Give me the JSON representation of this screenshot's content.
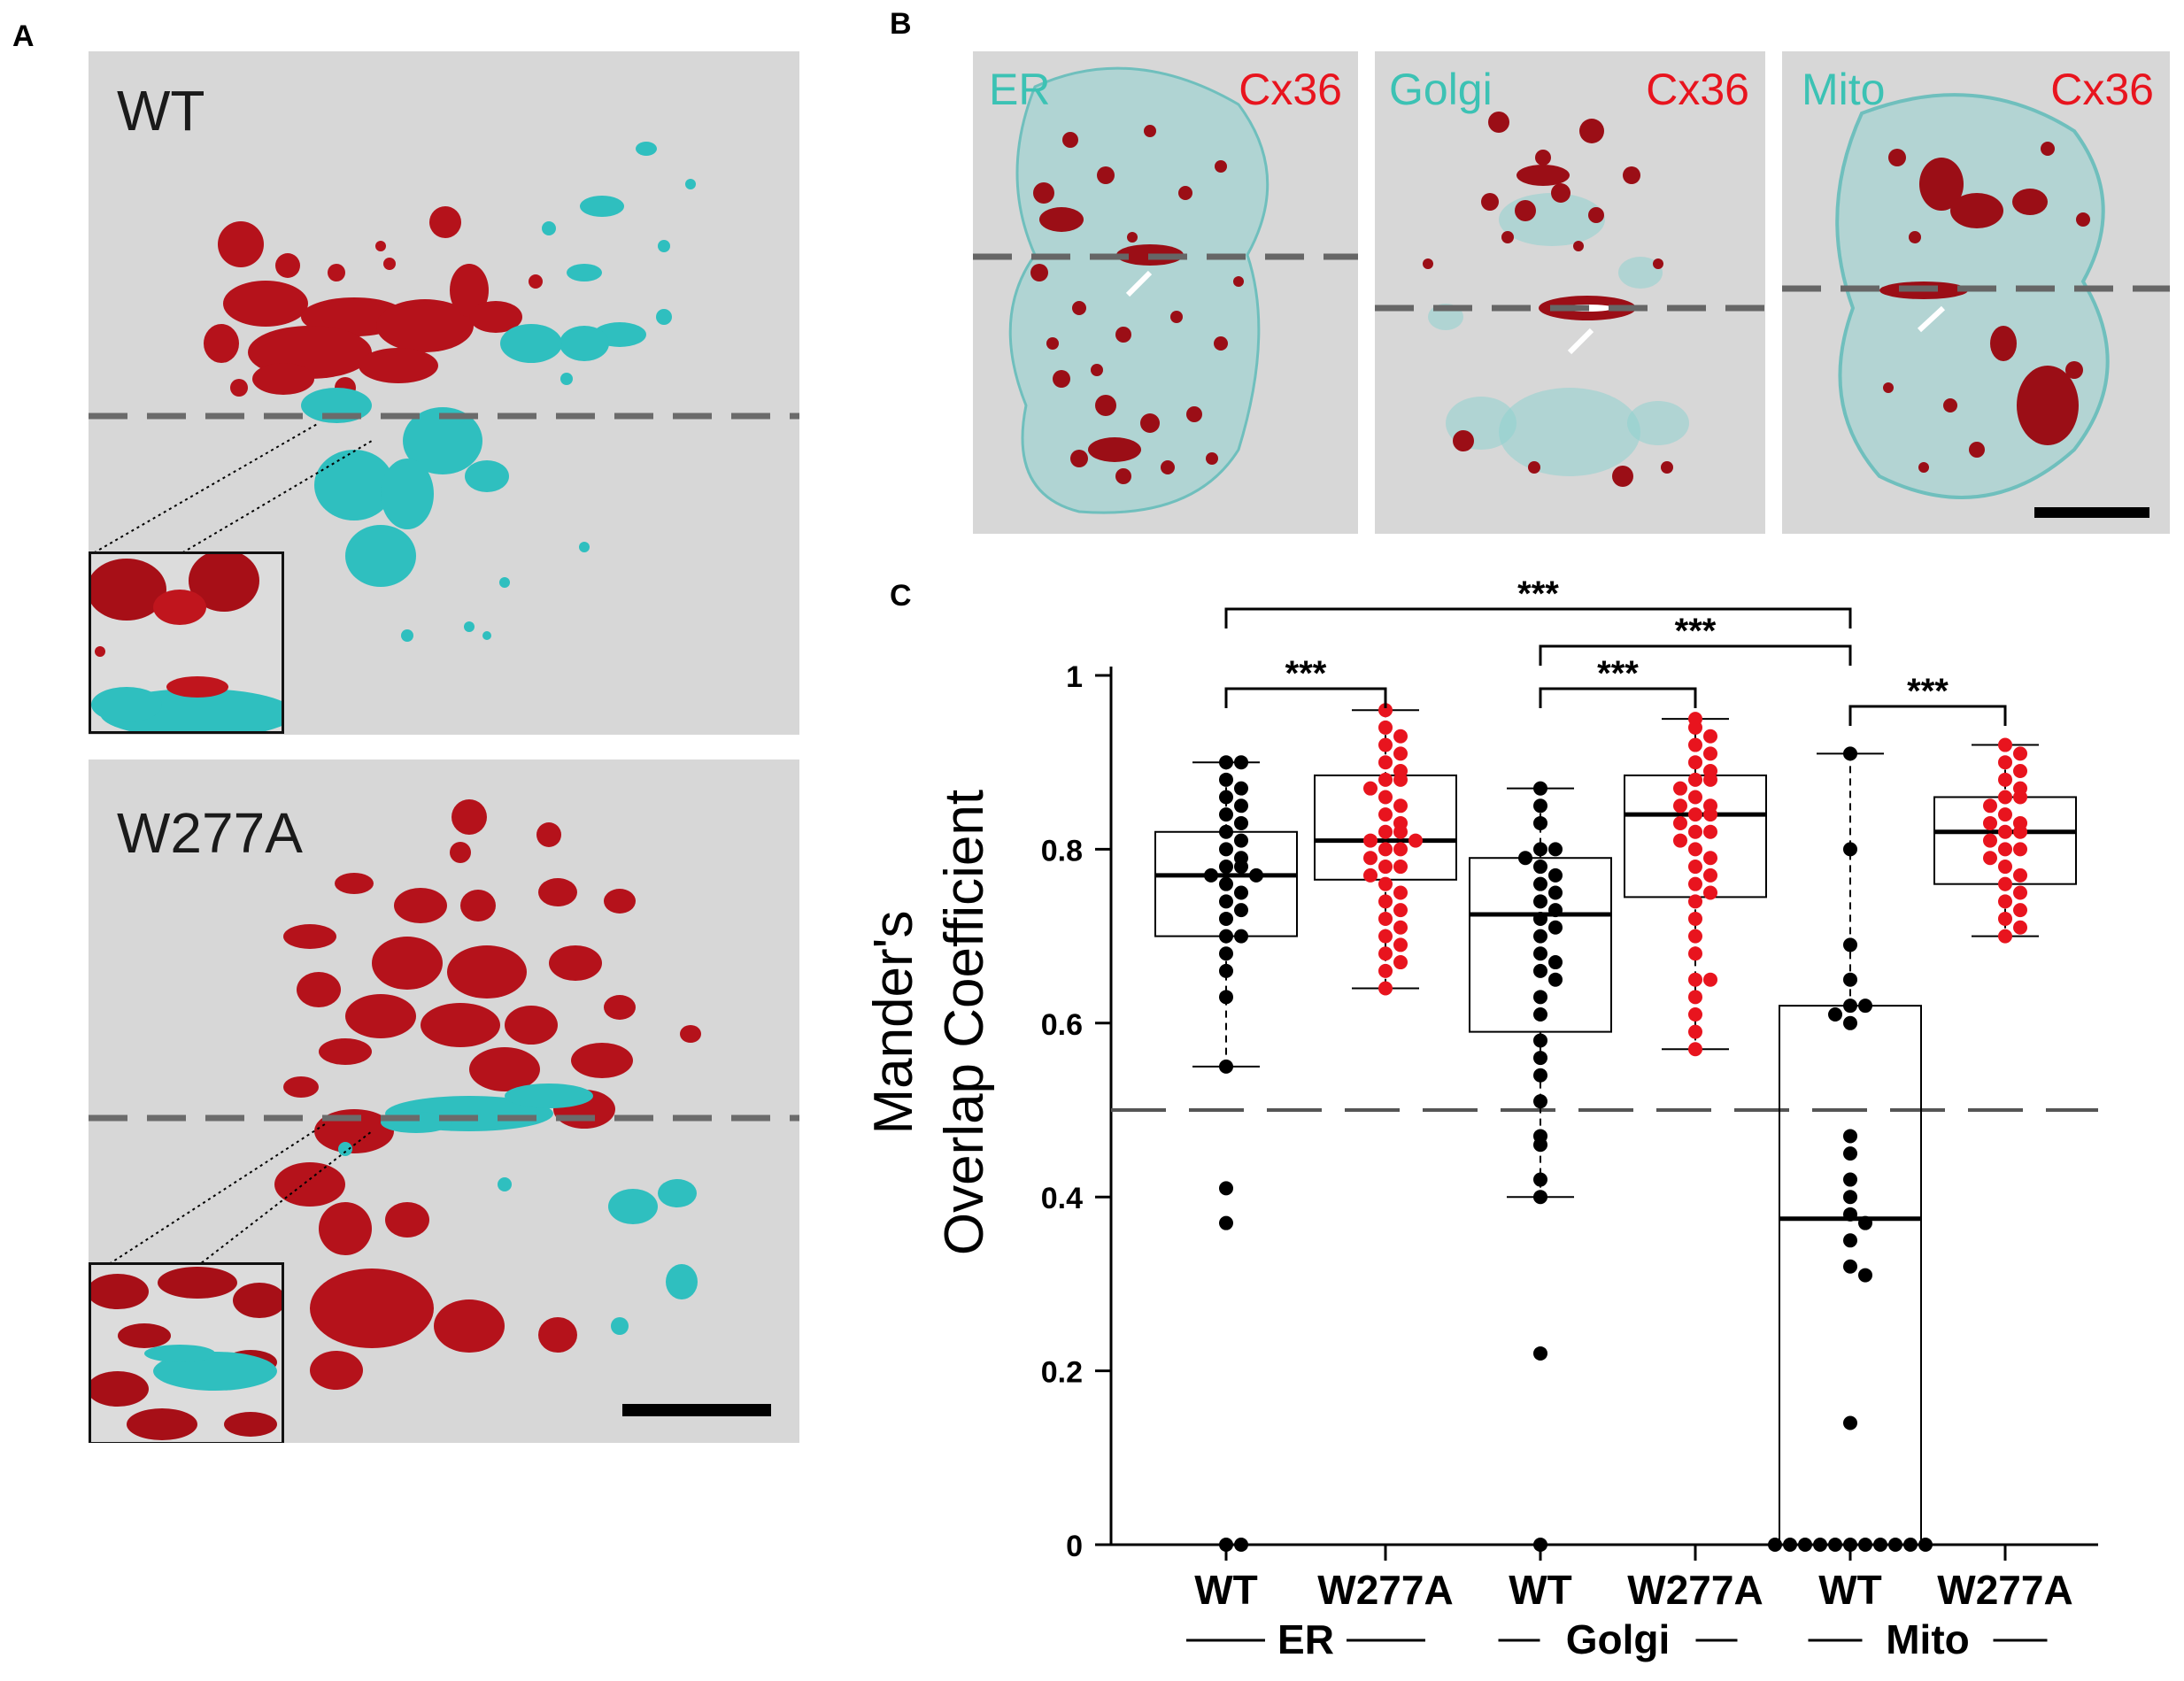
{
  "figure": {
    "panel_a": {
      "letter": "A",
      "top_label": "WT",
      "bottom_label": "W277A"
    },
    "panel_b": {
      "letter": "B",
      "tiles": [
        {
          "organelle": "ER",
          "protein": "Cx36"
        },
        {
          "organelle": "Golgi",
          "protein": "Cx36"
        },
        {
          "organelle": "Mito",
          "protein": "Cx36"
        }
      ]
    },
    "panel_c": {
      "letter": "C"
    }
  },
  "colors": {
    "red": "#e8141e",
    "teal": "#3cc2b4",
    "background": "#d7d7d7"
  },
  "chart_data": {
    "type": "box",
    "ylabel_line1": "Mander's",
    "ylabel_line2": "Overlap Coefficient",
    "ylim": [
      0,
      1
    ],
    "yticks": [
      "0",
      "0.2",
      "0.4",
      "0.6",
      "0.8",
      "1"
    ],
    "threshold": 0.5,
    "groups": [
      {
        "name": "ER",
        "categories": [
          "WT",
          "W277A"
        ]
      },
      {
        "name": "Golgi",
        "categories": [
          "WT",
          "W277A"
        ]
      },
      {
        "name": "Mito",
        "categories": [
          "WT",
          "W277A"
        ]
      }
    ],
    "series": [
      {
        "name": "ER WT",
        "group": "ER",
        "condition": "WT",
        "color": "#000000",
        "q1": 0.7,
        "median": 0.77,
        "q3": 0.82,
        "whisker_low": 0.55,
        "whisker_high": 0.9,
        "points": [
          0.9,
          0.9,
          0.88,
          0.87,
          0.86,
          0.85,
          0.84,
          0.83,
          0.82,
          0.81,
          0.8,
          0.79,
          0.78,
          0.78,
          0.77,
          0.77,
          0.76,
          0.75,
          0.74,
          0.73,
          0.72,
          0.7,
          0.7,
          0.68,
          0.66,
          0.63,
          0.55,
          0.41,
          0.37,
          0.0,
          0.0
        ]
      },
      {
        "name": "ER W277A",
        "group": "ER",
        "condition": "W277A",
        "color": "#e8141e",
        "q1": 0.765,
        "median": 0.81,
        "q3": 0.885,
        "whisker_low": 0.64,
        "whisker_high": 0.96,
        "points": [
          0.96,
          0.94,
          0.93,
          0.92,
          0.91,
          0.9,
          0.89,
          0.88,
          0.88,
          0.87,
          0.86,
          0.85,
          0.84,
          0.83,
          0.82,
          0.82,
          0.81,
          0.81,
          0.8,
          0.8,
          0.79,
          0.78,
          0.78,
          0.77,
          0.76,
          0.75,
          0.74,
          0.73,
          0.72,
          0.71,
          0.7,
          0.69,
          0.68,
          0.67,
          0.66,
          0.64
        ]
      },
      {
        "name": "Golgi WT",
        "group": "Golgi",
        "condition": "WT",
        "color": "#000000",
        "q1": 0.59,
        "median": 0.725,
        "q3": 0.79,
        "whisker_low": 0.4,
        "whisker_high": 0.87,
        "points": [
          0.87,
          0.85,
          0.83,
          0.8,
          0.8,
          0.79,
          0.78,
          0.77,
          0.76,
          0.75,
          0.74,
          0.73,
          0.72,
          0.71,
          0.7,
          0.68,
          0.67,
          0.66,
          0.65,
          0.63,
          0.61,
          0.58,
          0.56,
          0.54,
          0.51,
          0.47,
          0.46,
          0.42,
          0.4,
          0.22,
          0.0
        ]
      },
      {
        "name": "Golgi W277A",
        "group": "Golgi",
        "condition": "W277A",
        "color": "#e8141e",
        "q1": 0.745,
        "median": 0.84,
        "q3": 0.885,
        "whisker_low": 0.57,
        "whisker_high": 0.95,
        "points": [
          0.95,
          0.94,
          0.93,
          0.92,
          0.91,
          0.9,
          0.89,
          0.88,
          0.88,
          0.87,
          0.86,
          0.85,
          0.85,
          0.84,
          0.84,
          0.83,
          0.82,
          0.82,
          0.81,
          0.8,
          0.79,
          0.78,
          0.77,
          0.76,
          0.75,
          0.74,
          0.72,
          0.7,
          0.68,
          0.65,
          0.65,
          0.63,
          0.61,
          0.59,
          0.57
        ]
      },
      {
        "name": "Mito WT",
        "group": "Mito",
        "condition": "WT",
        "color": "#000000",
        "q1": 0.0,
        "median": 0.375,
        "q3": 0.62,
        "whisker_low": 0.0,
        "whisker_high": 0.91,
        "points": [
          0.91,
          0.8,
          0.69,
          0.65,
          0.62,
          0.62,
          0.61,
          0.6,
          0.47,
          0.45,
          0.42,
          0.4,
          0.38,
          0.37,
          0.35,
          0.32,
          0.31,
          0.14,
          0.0,
          0.0,
          0.0,
          0.0,
          0.0,
          0.0,
          0.0,
          0.0,
          0.0,
          0.0,
          0.0
        ]
      },
      {
        "name": "Mito W277A",
        "group": "Mito",
        "condition": "W277A",
        "color": "#e8141e",
        "q1": 0.76,
        "median": 0.82,
        "q3": 0.86,
        "whisker_low": 0.7,
        "whisker_high": 0.92,
        "points": [
          0.92,
          0.91,
          0.9,
          0.89,
          0.88,
          0.87,
          0.86,
          0.86,
          0.85,
          0.84,
          0.83,
          0.83,
          0.82,
          0.82,
          0.81,
          0.8,
          0.8,
          0.79,
          0.78,
          0.77,
          0.76,
          0.75,
          0.74,
          0.73,
          0.72,
          0.71,
          0.7
        ]
      }
    ],
    "significance": [
      {
        "from": 0,
        "to": 1,
        "label": "***"
      },
      {
        "from": 2,
        "to": 3,
        "label": "***"
      },
      {
        "from": 4,
        "to": 5,
        "label": "***"
      },
      {
        "from": 2,
        "to": 4,
        "label": "***"
      },
      {
        "from": 0,
        "to": 4,
        "label": "***"
      }
    ]
  }
}
